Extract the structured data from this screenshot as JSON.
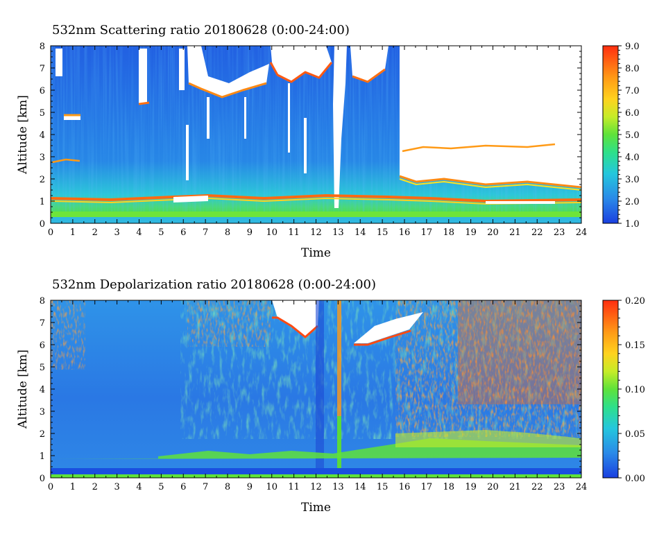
{
  "chart_data": [
    {
      "type": "heatmap",
      "title": "532nm Scattering ratio  20180628 (0:00-24:00)",
      "xlabel": "Time",
      "ylabel": "Altitude [km]",
      "xlim": [
        0,
        24
      ],
      "ylim": [
        0,
        8
      ],
      "x_ticks": [
        "0",
        "1",
        "2",
        "3",
        "4",
        "5",
        "6",
        "7",
        "8",
        "9",
        "10",
        "11",
        "12",
        "13",
        "14",
        "15",
        "16",
        "17",
        "18",
        "19",
        "20",
        "21",
        "22",
        "23",
        "24"
      ],
      "y_ticks": [
        "0",
        "1",
        "2",
        "3",
        "4",
        "5",
        "6",
        "7",
        "8"
      ],
      "colorbar": {
        "range": [
          1.0,
          9.0
        ],
        "ticks": [
          "1.0",
          "2.0",
          "3.0",
          "4.0",
          "5.0",
          "6.0",
          "7.0",
          "8.0",
          "9.0"
        ]
      }
    },
    {
      "type": "heatmap",
      "title": "532nm Depolarization ratio  20180628 (0:00-24:00)",
      "xlabel": "Time",
      "ylabel": "Altitude [km]",
      "xlim": [
        0,
        24
      ],
      "ylim": [
        0,
        8
      ],
      "x_ticks": [
        "0",
        "1",
        "2",
        "3",
        "4",
        "5",
        "6",
        "7",
        "8",
        "9",
        "10",
        "11",
        "12",
        "13",
        "14",
        "15",
        "16",
        "17",
        "18",
        "19",
        "20",
        "21",
        "22",
        "23",
        "24"
      ],
      "y_ticks": [
        "0",
        "1",
        "2",
        "3",
        "4",
        "5",
        "6",
        "7",
        "8"
      ],
      "colorbar": {
        "range": [
          0.0,
          0.2
        ],
        "ticks": [
          "0.00",
          "0.05",
          "0.10",
          "0.15",
          "0.20"
        ]
      }
    }
  ]
}
